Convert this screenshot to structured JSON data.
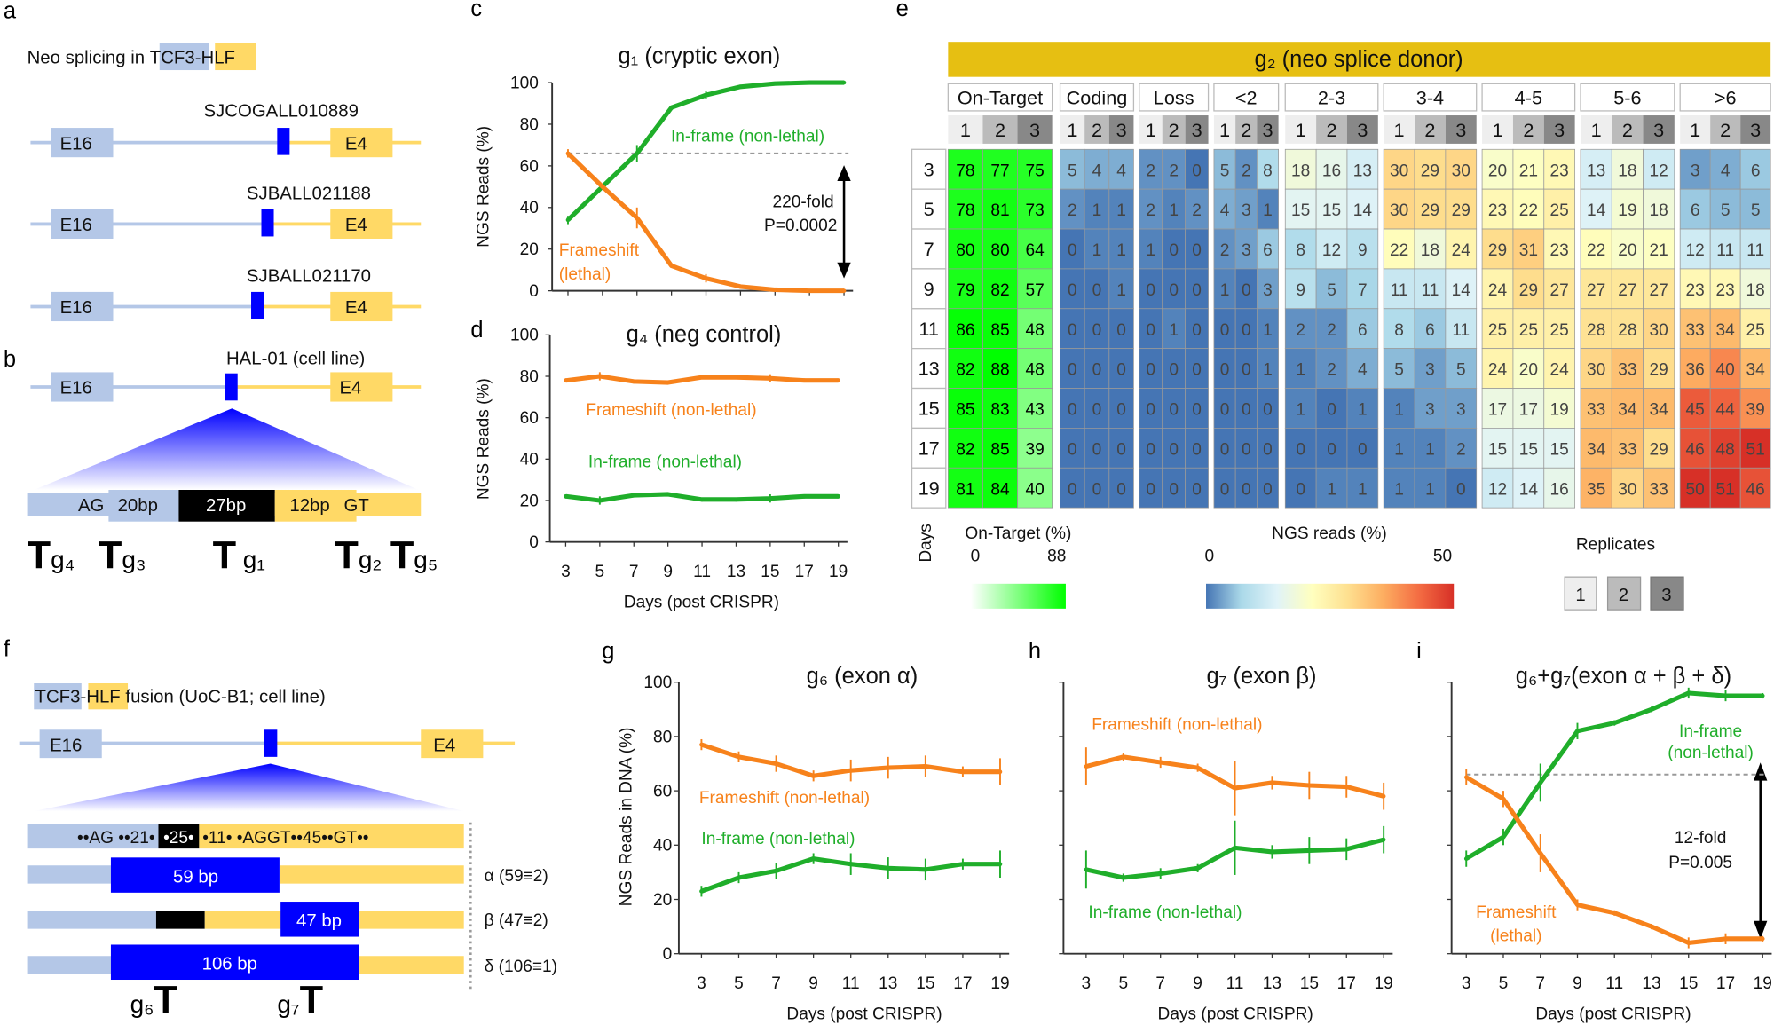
{
  "panel_labels": {
    "a": "a",
    "b": "b",
    "c": "c",
    "d": "d",
    "e": "e",
    "f": "f",
    "g": "g",
    "h": "h",
    "i": "i"
  },
  "colors": {
    "tcf3": "#b4c7e7",
    "hlf": "#ffd966",
    "neo_exon": "#0000ff",
    "frameshift": "#f7821b",
    "inframe": "#1fae2a",
    "banner": "#e6bf12",
    "replicates": [
      "#eeeeee",
      "#bbbbbb",
      "#888888"
    ]
  },
  "panel_a": {
    "title_prefix": "Neo splicing in ",
    "gene1": "TCF3",
    "dash": "-",
    "gene2": "HLF",
    "samples": [
      "SJCOGALL010889",
      "SJBALL021188",
      "SJBALL021170"
    ],
    "exon_left": "E16",
    "exon_right": "E4"
  },
  "panel_b": {
    "sample": "HAL-01 (cell line)",
    "exon_left": "E16",
    "exon_right": "E4",
    "seq": {
      "ag": "AG",
      "left": "20bp",
      "mid": "27bp",
      "right": "12bp",
      "gt": "GT"
    },
    "guide_marker": "T",
    "guides": [
      "g₄",
      "g₃",
      "g₁",
      "g₂",
      "g₅"
    ]
  },
  "panel_f": {
    "gene1": "TCF3",
    "dash": "-",
    "gene2": "HLF",
    "title_suffix": " fusion (UoC-B1; cell line)",
    "exon_left": "E16",
    "exon_right": "E4",
    "seq": {
      "left": "••AG ••21•",
      "mid": "•25•",
      "right": "•11• •AGGT••45••GT••"
    },
    "exons": [
      {
        "box": "59 bp",
        "label": "α (59≡2)"
      },
      {
        "box": "47 bp",
        "label": "β (47≡2)"
      },
      {
        "box": "106 bp",
        "label": "δ (106≡1)"
      }
    ],
    "guide_marker": "T",
    "guides": [
      "g₆",
      "g₇"
    ]
  },
  "chart_data": [
    {
      "id": "c",
      "type": "line",
      "title": "g₁ (cryptic exon)",
      "ylabel": "NGS Reads (%)",
      "x": [
        3,
        5,
        7,
        9,
        11,
        13,
        15,
        17,
        19
      ],
      "ylim": [
        0,
        100
      ],
      "yticks": [
        0,
        20,
        40,
        60,
        80,
        100
      ],
      "series": [
        {
          "name": "In-frame (non-lethal)",
          "color": "#1fae2a",
          "values": [
            34,
            50,
            66,
            88,
            94,
            98,
            99.5,
            100,
            100
          ],
          "errors": [
            2,
            0,
            4,
            1,
            2,
            1,
            0,
            0,
            0
          ]
        },
        {
          "name": "Frameshift (lethal)",
          "label_lines": [
            "Frameshift",
            "(lethal)"
          ],
          "color": "#f7821b",
          "values": [
            66,
            50,
            35,
            12,
            6,
            2,
            0.5,
            0,
            0
          ],
          "errors": [
            2,
            0,
            5,
            1,
            2,
            1,
            0,
            0,
            0
          ]
        }
      ],
      "threshold": 66,
      "annotation": {
        "fold": "220-fold",
        "p": "P=0.0002"
      }
    },
    {
      "id": "d",
      "type": "line",
      "title": "g₄ (neg control)",
      "ylabel": "NGS Reads (%)",
      "xlabel": "Days (post CRISPR)",
      "x": [
        3,
        5,
        7,
        9,
        11,
        13,
        15,
        17,
        19
      ],
      "ylim": [
        0,
        100
      ],
      "yticks": [
        0,
        20,
        40,
        60,
        80,
        100
      ],
      "series": [
        {
          "name": "Frameshift (non-lethal)",
          "color": "#f7821b",
          "values": [
            78,
            80,
            77.5,
            77,
            79.5,
            79.5,
            79,
            78,
            78
          ],
          "errors": [
            1,
            2,
            1,
            1,
            1,
            1,
            2,
            1,
            1
          ]
        },
        {
          "name": "In-frame (non-lethal)",
          "color": "#1fae2a",
          "values": [
            22,
            20,
            22.5,
            23,
            20.5,
            20.5,
            21,
            22,
            22
          ],
          "errors": [
            1,
            2,
            1,
            1,
            1,
            1,
            2,
            1,
            1
          ]
        }
      ]
    },
    {
      "id": "e",
      "type": "heatmap",
      "title": "g₂ (neo splice donor)",
      "row_label": "Days",
      "rows": [
        "3",
        "5",
        "7",
        "9",
        "11",
        "13",
        "15",
        "17",
        "19"
      ],
      "replicates": [
        "1",
        "2",
        "3"
      ],
      "groups": [
        {
          "label": "On-Target",
          "scale": "ontarget",
          "values": [
            [
              78,
              77,
              75
            ],
            [
              78,
              81,
              73
            ],
            [
              80,
              80,
              64
            ],
            [
              79,
              82,
              57
            ],
            [
              86,
              85,
              48
            ],
            [
              82,
              88,
              48
            ],
            [
              85,
              83,
              43
            ],
            [
              82,
              85,
              39
            ],
            [
              81,
              84,
              40
            ]
          ]
        },
        {
          "label": "Coding",
          "scale": "ngs",
          "values": [
            [
              5,
              4,
              4
            ],
            [
              2,
              1,
              1
            ],
            [
              0,
              1,
              1
            ],
            [
              0,
              0,
              1
            ],
            [
              0,
              0,
              0
            ],
            [
              0,
              0,
              0
            ],
            [
              0,
              0,
              0
            ],
            [
              0,
              0,
              0
            ],
            [
              0,
              0,
              0
            ]
          ]
        },
        {
          "label": "Loss",
          "scale": "ngs",
          "values": [
            [
              2,
              2,
              0
            ],
            [
              2,
              1,
              2
            ],
            [
              1,
              0,
              0
            ],
            [
              0,
              0,
              0
            ],
            [
              0,
              1,
              0
            ],
            [
              0,
              0,
              0
            ],
            [
              0,
              0,
              0
            ],
            [
              0,
              0,
              0
            ],
            [
              0,
              0,
              0
            ]
          ]
        },
        {
          "label": "<2",
          "scale": "ngs",
          "values": [
            [
              5,
              2,
              8
            ],
            [
              4,
              3,
              1
            ],
            [
              2,
              3,
              6
            ],
            [
              1,
              0,
              3
            ],
            [
              0,
              0,
              1
            ],
            [
              0,
              0,
              1
            ],
            [
              0,
              0,
              0
            ],
            [
              0,
              0,
              0
            ],
            [
              0,
              0,
              0
            ]
          ]
        },
        {
          "label": "2-3",
          "scale": "ngs",
          "values": [
            [
              18,
              16,
              13
            ],
            [
              15,
              15,
              14
            ],
            [
              8,
              12,
              9
            ],
            [
              9,
              5,
              7
            ],
            [
              2,
              2,
              6
            ],
            [
              1,
              2,
              4
            ],
            [
              1,
              0,
              1
            ],
            [
              0,
              0,
              0
            ],
            [
              0,
              1,
              1
            ]
          ]
        },
        {
          "label": "3-4",
          "scale": "ngs",
          "values": [
            [
              30,
              29,
              30
            ],
            [
              30,
              29,
              29
            ],
            [
              22,
              18,
              24
            ],
            [
              11,
              11,
              14
            ],
            [
              8,
              6,
              11
            ],
            [
              5,
              3,
              5
            ],
            [
              1,
              3,
              3
            ],
            [
              1,
              1,
              2
            ],
            [
              1,
              1,
              0
            ]
          ]
        },
        {
          "label": "4-5",
          "scale": "ngs",
          "values": [
            [
              20,
              21,
              23
            ],
            [
              23,
              22,
              25
            ],
            [
              29,
              31,
              23
            ],
            [
              24,
              29,
              27
            ],
            [
              25,
              25,
              25
            ],
            [
              24,
              20,
              24
            ],
            [
              17,
              17,
              19
            ],
            [
              15,
              15,
              15
            ],
            [
              12,
              14,
              16
            ]
          ]
        },
        {
          "label": "5-6",
          "scale": "ngs",
          "values": [
            [
              13,
              18,
              12
            ],
            [
              14,
              19,
              18
            ],
            [
              22,
              20,
              21
            ],
            [
              27,
              27,
              27
            ],
            [
              28,
              28,
              30
            ],
            [
              30,
              33,
              29
            ],
            [
              33,
              34,
              34
            ],
            [
              34,
              33,
              29
            ],
            [
              35,
              30,
              33
            ]
          ]
        },
        {
          "label": ">6",
          "scale": "ngs",
          "values": [
            [
              3,
              4,
              6
            ],
            [
              6,
              5,
              5
            ],
            [
              12,
              11,
              11
            ],
            [
              23,
              23,
              18
            ],
            [
              33,
              34,
              25
            ],
            [
              36,
              40,
              34
            ],
            [
              45,
              44,
              39
            ],
            [
              46,
              48,
              51
            ],
            [
              50,
              51,
              46
            ]
          ]
        }
      ],
      "legend": {
        "ontarget": {
          "title": "On-Target (%)",
          "min": 0,
          "max": 88,
          "min_label": "0",
          "max_label": "88",
          "stops": [
            "#ffffff",
            "#00ff00"
          ]
        },
        "ngs": {
          "title": "NGS reads (%)",
          "min": 0,
          "max": 50,
          "min_label": "0",
          "max_label": "50",
          "stops": [
            "#4575b4",
            "#abd9e9",
            "#e0f3f8",
            "#ffffbf",
            "#fee090",
            "#fdae61",
            "#f46d43",
            "#d73027"
          ]
        },
        "replicates_title": "Replicates"
      }
    },
    {
      "id": "g",
      "type": "line",
      "title": "g₆ (exon α)",
      "ylabel": "NGS Reads in DNA (%)",
      "xlabel": "Days (post CRISPR)",
      "x": [
        3,
        5,
        7,
        9,
        11,
        13,
        15,
        17,
        19
      ],
      "ylim": [
        0,
        100
      ],
      "yticks": [
        0,
        20,
        40,
        60,
        80,
        100
      ],
      "series": [
        {
          "name": "Frameshift (non-lethal)",
          "color": "#f7821b",
          "values": [
            77,
            72.5,
            70,
            65.5,
            67.5,
            68.5,
            69,
            67,
            67
          ],
          "errors": [
            2,
            2,
            3,
            2,
            4,
            4,
            4,
            2,
            5
          ]
        },
        {
          "name": "In-frame (non-lethal)",
          "color": "#1fae2a",
          "values": [
            23,
            28,
            30.5,
            35,
            33,
            31.5,
            31,
            33,
            33
          ],
          "errors": [
            2,
            2,
            3,
            2,
            4,
            4,
            4,
            2,
            5
          ]
        }
      ]
    },
    {
      "id": "h",
      "type": "line",
      "title": "g₇ (exon β)",
      "xlabel": "Days (post CRISPR)",
      "x": [
        3,
        5,
        7,
        9,
        11,
        13,
        15,
        17,
        19
      ],
      "ylim": [
        0,
        100
      ],
      "yticks": [
        0,
        20,
        40,
        60,
        80,
        100
      ],
      "series": [
        {
          "name": "Frameshift (non-lethal)",
          "color": "#f7821b",
          "values": [
            69,
            72.5,
            70.5,
            68.5,
            61,
            63,
            62,
            61.5,
            58
          ],
          "errors": [
            7,
            1.5,
            2,
            1.5,
            10,
            2.5,
            5,
            4,
            5
          ]
        },
        {
          "name": "In-frame (non-lethal)",
          "color": "#1fae2a",
          "values": [
            31,
            28,
            29.5,
            31.5,
            39,
            37.5,
            38,
            38.5,
            42
          ],
          "errors": [
            7,
            1.5,
            2,
            1.5,
            10,
            2.5,
            5,
            4,
            5
          ]
        }
      ]
    },
    {
      "id": "i",
      "type": "line",
      "title": "g₆+g₇(exon α + β + δ)",
      "xlabel": "Days (post CRISPR)",
      "x": [
        3,
        5,
        7,
        9,
        11,
        13,
        15,
        17,
        19
      ],
      "ylim": [
        0,
        100
      ],
      "yticks": [
        0,
        20,
        40,
        60,
        80,
        100
      ],
      "series": [
        {
          "name": "In-frame (non-lethal)",
          "label_lines": [
            "In-frame",
            "(non-lethal)"
          ],
          "color": "#1fae2a",
          "values": [
            35,
            43,
            63,
            82,
            85,
            90,
            96,
            95,
            95
          ],
          "errors": [
            3,
            3,
            7,
            3,
            1,
            1,
            2,
            2,
            1
          ]
        },
        {
          "name": "Frameshift (lethal)",
          "label_lines": [
            "Frameshift",
            "(lethal)"
          ],
          "color": "#f7821b",
          "values": [
            65,
            57,
            37,
            18,
            15,
            10,
            4,
            5.5,
            5.5
          ],
          "errors": [
            3,
            3,
            7,
            2,
            1,
            1,
            2,
            2,
            1
          ]
        }
      ],
      "threshold": 66,
      "annotation": {
        "fold": "12-fold",
        "p": "P=0.005"
      }
    }
  ]
}
